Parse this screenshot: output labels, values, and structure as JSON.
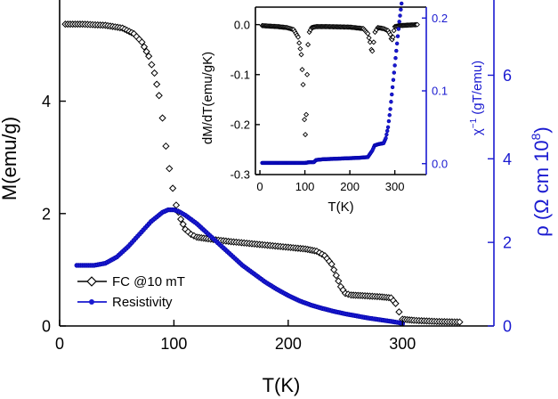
{
  "chart_data": [
    {
      "name": "main",
      "type": "scatter",
      "xlabel": "T(K)",
      "ylabel_left": "M(emu/g)",
      "ylabel_right": "ρ (Ω cm 10^8)",
      "ylabel_right_parts": {
        "prefix": "ρ (Ω cm 10",
        "exponent": "8",
        "suffix": ")"
      },
      "xlim": [
        0,
        380
      ],
      "ylim_left": [
        0,
        5.8
      ],
      "ylim_right": [
        0,
        7.8
      ],
      "x_ticks": [
        0,
        100,
        200,
        300
      ],
      "x_tick_labels": [
        "0",
        "100",
        "200",
        "300"
      ],
      "y_left_ticks": [
        0,
        2,
        4
      ],
      "y_left_tick_labels": [
        "0",
        "2",
        "4"
      ],
      "y_right_ticks": [
        0,
        2,
        4,
        6
      ],
      "y_right_tick_labels": [
        "0",
        "2",
        "4",
        "6"
      ],
      "legend": [
        "FC @10 mT",
        "Resistivity"
      ],
      "legend_position": "lower-left",
      "colors": {
        "magnetization": "#000000",
        "resistivity": "#1a1ad0"
      },
      "series": [
        {
          "name": "FC @10 mT",
          "axis": "left",
          "marker": "diamond-open",
          "x": [
            5,
            20,
            40,
            55,
            65,
            72,
            78,
            83,
            87,
            90,
            93,
            96,
            99,
            102,
            106,
            110,
            115,
            120,
            130,
            150,
            175,
            200,
            215,
            225,
            232,
            238,
            242,
            246,
            250,
            255,
            265,
            280,
            290,
            294,
            297,
            300,
            310,
            330,
            350
          ],
          "y": [
            5.37,
            5.37,
            5.35,
            5.3,
            5.2,
            5.05,
            4.8,
            4.5,
            4.1,
            3.7,
            3.2,
            2.8,
            2.45,
            2.15,
            1.9,
            1.72,
            1.63,
            1.58,
            1.55,
            1.5,
            1.45,
            1.4,
            1.37,
            1.33,
            1.25,
            1.1,
            0.9,
            0.7,
            0.58,
            0.55,
            0.54,
            0.52,
            0.5,
            0.4,
            0.25,
            0.12,
            0.1,
            0.08,
            0.07
          ]
        },
        {
          "name": "Resistivity",
          "axis": "right",
          "marker": "circle",
          "x": [
            15,
            30,
            40,
            50,
            60,
            70,
            80,
            90,
            95,
            100,
            105,
            110,
            120,
            130,
            140,
            150,
            160,
            170,
            180,
            190,
            200,
            210,
            220,
            230,
            240,
            250,
            260,
            270,
            280,
            290,
            297,
            300
          ],
          "y": [
            1.45,
            1.45,
            1.5,
            1.65,
            1.9,
            2.2,
            2.5,
            2.72,
            2.78,
            2.78,
            2.73,
            2.65,
            2.45,
            2.2,
            1.95,
            1.7,
            1.45,
            1.25,
            1.05,
            0.88,
            0.73,
            0.6,
            0.5,
            0.42,
            0.35,
            0.29,
            0.24,
            0.19,
            0.15,
            0.11,
            0.08,
            0.05
          ]
        }
      ]
    },
    {
      "name": "inset",
      "type": "scatter",
      "xlabel": "T(K)",
      "ylabel_left": "dM/dT(emu/gK)",
      "ylabel_right": "χ⁻¹ (gT/emu)",
      "ylabel_right_parts": {
        "prefix": "χ",
        "exponent": "−1",
        "suffix": " (gT/emu)"
      },
      "xlim": [
        -10,
        370
      ],
      "ylim_left": [
        -0.3,
        0.035
      ],
      "ylim_right": [
        -0.015,
        0.215
      ],
      "x_ticks": [
        0,
        100,
        200,
        300
      ],
      "x_tick_labels": [
        "0",
        "100",
        "200",
        "300"
      ],
      "y_left_ticks": [
        0.0,
        -0.1,
        -0.2,
        -0.3
      ],
      "y_left_tick_labels": [
        "0.0",
        "-0.1",
        "-0.2",
        "-0.3"
      ],
      "y_right_ticks": [
        0.0,
        0.1,
        0.2
      ],
      "y_right_tick_labels": [
        "0.0",
        "0.1",
        "0.2"
      ],
      "series": [
        {
          "name": "dM/dT",
          "axis": "left",
          "marker": "diamond-open",
          "x": [
            5,
            20,
            40,
            60,
            75,
            85,
            92,
            96,
            99,
            101,
            103,
            105,
            107,
            110,
            115,
            125,
            150,
            200,
            230,
            240,
            245,
            248,
            250,
            253,
            256,
            262,
            275,
            285,
            290,
            292,
            294,
            296,
            298,
            300,
            310,
            330,
            350
          ],
          "y": [
            -0.002,
            -0.003,
            -0.004,
            -0.006,
            -0.01,
            -0.025,
            -0.06,
            -0.12,
            -0.19,
            -0.22,
            -0.18,
            -0.1,
            -0.04,
            -0.015,
            -0.006,
            -0.004,
            -0.004,
            -0.005,
            -0.008,
            -0.018,
            -0.035,
            -0.05,
            -0.053,
            -0.035,
            -0.015,
            -0.006,
            -0.008,
            -0.012,
            -0.02,
            -0.028,
            -0.03,
            -0.025,
            -0.012,
            -0.004,
            -0.002,
            -0.001,
            0.0
          ]
        },
        {
          "name": "inverse susceptibility",
          "axis": "right",
          "marker": "circle",
          "x": [
            5,
            50,
            100,
            110,
            120,
            125,
            140,
            180,
            220,
            240,
            250,
            255,
            260,
            265,
            275,
            280,
            285,
            290,
            295,
            300,
            305,
            310,
            315
          ],
          "y": [
            0.001,
            0.001,
            0.001,
            0.002,
            0.002,
            0.005,
            0.006,
            0.007,
            0.008,
            0.009,
            0.018,
            0.025,
            0.026,
            0.027,
            0.028,
            0.035,
            0.05,
            0.075,
            0.105,
            0.135,
            0.165,
            0.195,
            0.22
          ]
        }
      ]
    }
  ]
}
